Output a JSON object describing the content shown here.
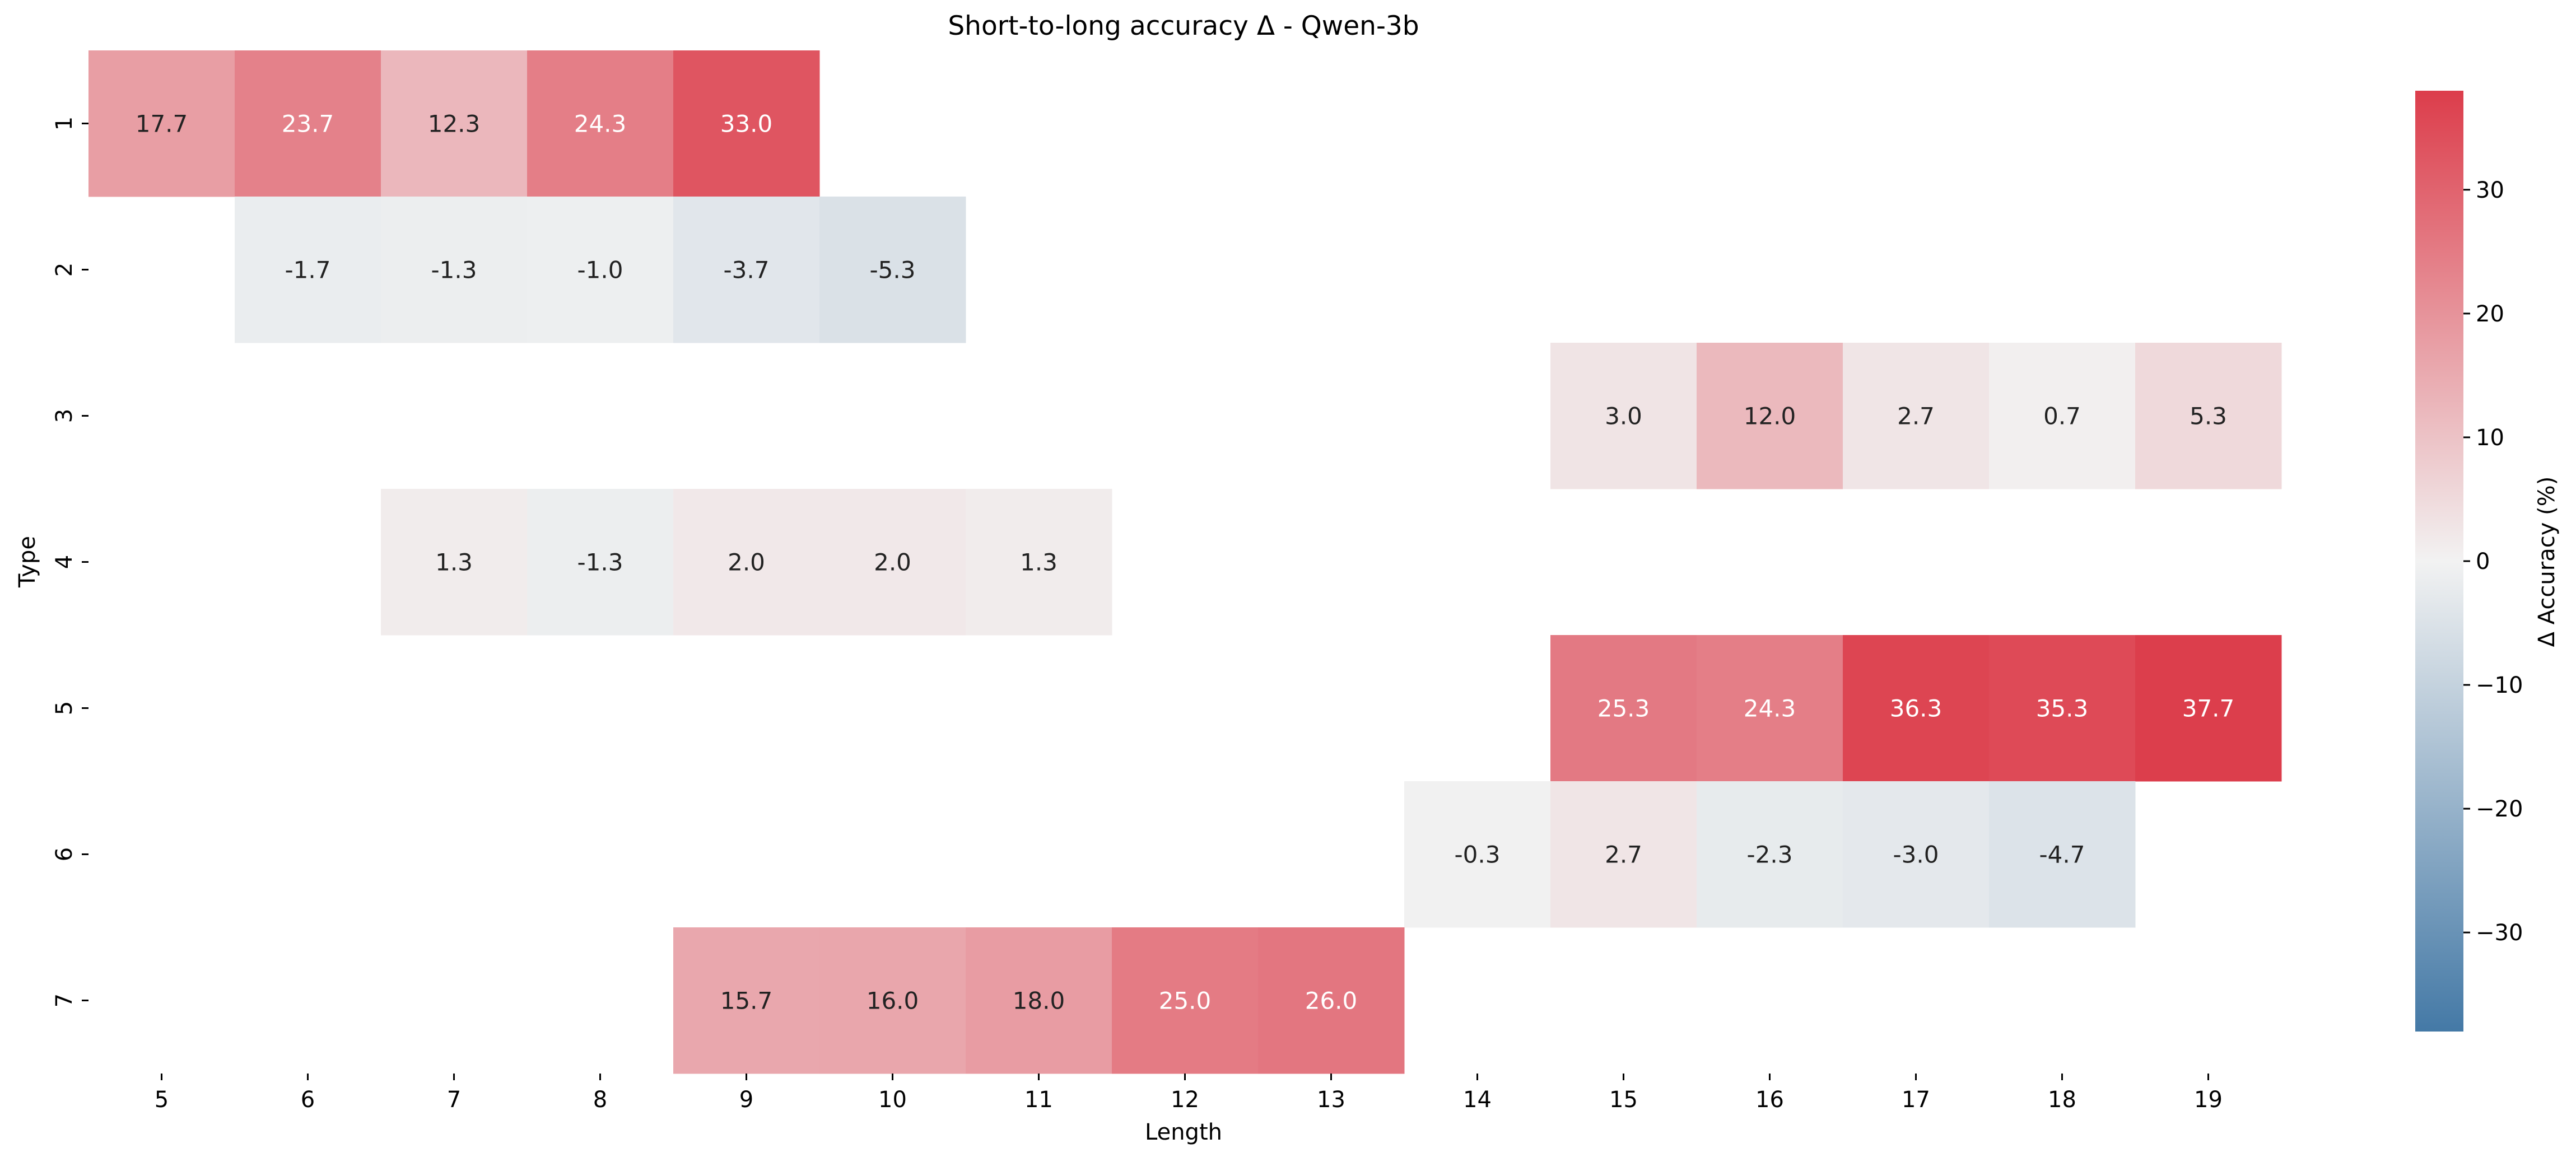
{
  "chart_data": {
    "type": "heatmap",
    "title": "Short-to-long accuracy Δ - Qwen-3b",
    "xlabel": "Length",
    "ylabel": "Type",
    "x": [
      "5",
      "6",
      "7",
      "8",
      "9",
      "10",
      "11",
      "12",
      "13",
      "14",
      "15",
      "16",
      "17",
      "18",
      "19"
    ],
    "y": [
      "1",
      "2",
      "3",
      "4",
      "5",
      "6",
      "7"
    ],
    "values": [
      [
        17.7,
        23.7,
        12.3,
        24.3,
        33.0,
        null,
        null,
        null,
        null,
        null,
        null,
        null,
        null,
        null,
        null
      ],
      [
        null,
        -1.7,
        -1.3,
        -1.0,
        -3.7,
        -5.3,
        null,
        null,
        null,
        null,
        null,
        null,
        null,
        null,
        null
      ],
      [
        null,
        null,
        null,
        null,
        null,
        null,
        null,
        null,
        null,
        null,
        3.0,
        12.0,
        2.7,
        0.7,
        5.3
      ],
      [
        null,
        null,
        1.3,
        -1.3,
        2.0,
        2.0,
        1.3,
        null,
        null,
        null,
        null,
        null,
        null,
        null,
        null
      ],
      [
        null,
        null,
        null,
        null,
        null,
        null,
        null,
        null,
        null,
        null,
        25.3,
        24.3,
        36.3,
        35.3,
        37.7
      ],
      [
        null,
        null,
        null,
        null,
        null,
        null,
        null,
        null,
        null,
        -0.3,
        2.7,
        -2.3,
        -3.0,
        -4.7,
        null
      ],
      [
        null,
        null,
        null,
        null,
        15.7,
        16.0,
        18.0,
        25.0,
        26.0,
        null,
        null,
        null,
        null,
        null,
        null
      ]
    ],
    "colorbar": {
      "label": "Δ Accuracy (%)",
      "range": [
        -38,
        38
      ],
      "ticks": [
        -30,
        -20,
        -10,
        0,
        10,
        20,
        30
      ],
      "low_color": "#4479a6",
      "mid_color": "#f2f2f2",
      "high_color": "#dc3d4b"
    },
    "grid": false,
    "legend": "none"
  }
}
